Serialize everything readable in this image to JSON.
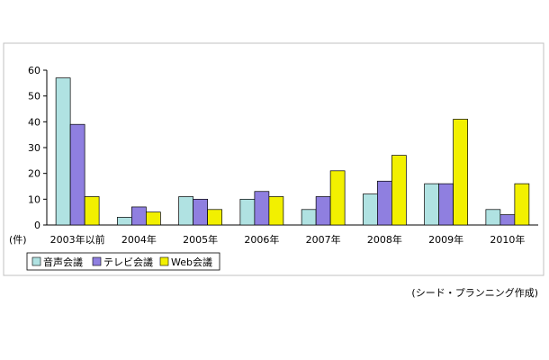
{
  "chart_data": {
    "type": "bar",
    "categories": [
      "2003年以前",
      "2004年",
      "2005年",
      "2006年",
      "2007年",
      "2008年",
      "2009年",
      "2010年"
    ],
    "series": [
      {
        "name": "音声会議",
        "values": [
          57,
          3,
          11,
          10,
          6,
          12,
          16,
          6
        ],
        "color": "#b0e2e2"
      },
      {
        "name": "テレビ会議",
        "values": [
          39,
          7,
          10,
          13,
          11,
          17,
          16,
          4
        ],
        "color": "#8f7fe0"
      },
      {
        "name": "Web会議",
        "values": [
          11,
          5,
          6,
          11,
          21,
          27,
          41,
          16
        ],
        "color": "#f2f000"
      }
    ],
    "ylim": [
      0,
      60
    ],
    "yticks": [
      0,
      10,
      20,
      30,
      40,
      50,
      60
    ],
    "ylabel": "(件)",
    "xlabel": "",
    "title": "",
    "grid": false,
    "legend_position": "bottom-left"
  },
  "source_note": "(シード・プランニング作成)"
}
